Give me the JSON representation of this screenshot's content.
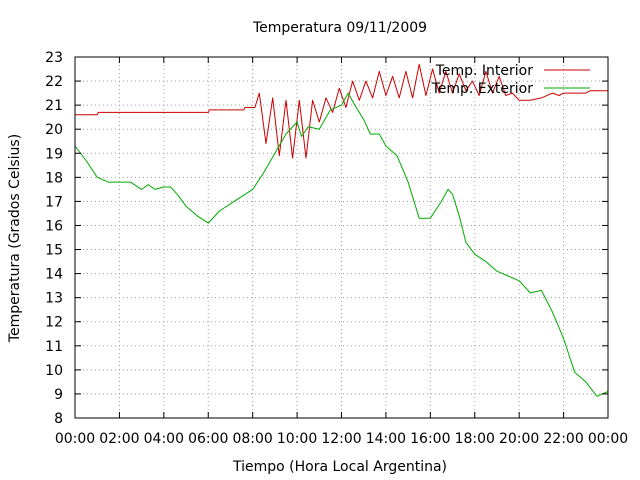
{
  "chart_data": {
    "type": "line",
    "title": "Temperatura 09/11/2009",
    "xlabel": "Tiempo (Hora Local Argentina)",
    "ylabel": "Temperatura (Grados Celsius)",
    "xlim": [
      0,
      24
    ],
    "ylim": [
      8,
      23
    ],
    "grid": true,
    "legend_position": "top-right",
    "x_ticks": [
      0,
      2,
      4,
      6,
      8,
      10,
      12,
      14,
      16,
      18,
      20,
      22,
      24
    ],
    "x_tick_labels": [
      "00:00",
      "02:00",
      "04:00",
      "06:00",
      "08:00",
      "10:00",
      "12:00",
      "14:00",
      "16:00",
      "18:00",
      "20:00",
      "22:00",
      "00:00"
    ],
    "y_ticks": [
      8,
      9,
      10,
      11,
      12,
      13,
      14,
      15,
      16,
      17,
      18,
      19,
      20,
      21,
      22,
      23
    ],
    "y_tick_labels": [
      "8",
      "9",
      "10",
      "11",
      "12",
      "13",
      "14",
      "15",
      "16",
      "17",
      "18",
      "19",
      "20",
      "21",
      "22",
      "23"
    ],
    "series": [
      {
        "name": "Temp. Interior",
        "color": "#cc0000",
        "x": [
          0,
          1,
          1.05,
          6,
          6.05,
          7.6,
          7.65,
          8.1,
          8.3,
          8.6,
          8.9,
          9.2,
          9.5,
          9.8,
          10.1,
          10.4,
          10.7,
          11.0,
          11.3,
          11.6,
          11.9,
          12.2,
          12.5,
          12.8,
          13.1,
          13.4,
          13.7,
          14.0,
          14.3,
          14.6,
          14.9,
          15.2,
          15.5,
          15.8,
          16.1,
          16.4,
          16.7,
          17.0,
          17.3,
          17.6,
          17.9,
          18.2,
          18.5,
          18.8,
          19.1,
          19.4,
          19.7,
          20.0,
          20.5,
          21.0,
          21.5,
          21.8,
          22.0,
          23.0,
          23.2,
          24.0
        ],
        "y": [
          20.6,
          20.6,
          20.7,
          20.7,
          20.8,
          20.8,
          20.9,
          20.9,
          21.5,
          19.4,
          21.3,
          18.9,
          21.2,
          18.8,
          21.2,
          18.8,
          21.2,
          20.3,
          21.3,
          20.7,
          21.7,
          20.9,
          22.0,
          21.2,
          22.0,
          21.3,
          22.4,
          21.4,
          22.2,
          21.3,
          22.4,
          21.3,
          22.7,
          21.4,
          22.5,
          21.5,
          22.4,
          21.5,
          22.3,
          21.6,
          22.0,
          21.4,
          22.4,
          21.5,
          22.2,
          21.4,
          21.5,
          21.2,
          21.2,
          21.3,
          21.5,
          21.4,
          21.5,
          21.5,
          21.6,
          21.6
        ]
      },
      {
        "name": "Temp. Exterior",
        "color": "#00aa00",
        "x": [
          0,
          0.5,
          1,
          1.5,
          2,
          2.5,
          3,
          3.3,
          3.6,
          4,
          4.3,
          4.6,
          5,
          5.5,
          6,
          6.5,
          7,
          7.5,
          8,
          8.5,
          9,
          9.5,
          10,
          10.2,
          10.5,
          11,
          11.5,
          12,
          12.3,
          12.6,
          13,
          13.3,
          13.7,
          14,
          14.5,
          15,
          15.5,
          16,
          16.5,
          16.8,
          17,
          17.3,
          17.6,
          18,
          18.5,
          19,
          19.5,
          20,
          20.5,
          21,
          21.5,
          22,
          22.5,
          23,
          23.5,
          24
        ],
        "y": [
          19.3,
          18.7,
          18.0,
          17.8,
          17.8,
          17.8,
          17.5,
          17.7,
          17.5,
          17.6,
          17.6,
          17.3,
          16.8,
          16.4,
          16.1,
          16.6,
          16.9,
          17.2,
          17.5,
          18.2,
          19.0,
          19.8,
          20.3,
          19.7,
          20.1,
          20.0,
          20.8,
          21.0,
          21.5,
          21.0,
          20.4,
          19.8,
          19.8,
          19.3,
          18.9,
          17.8,
          16.3,
          16.3,
          17.0,
          17.5,
          17.3,
          16.4,
          15.3,
          14.8,
          14.5,
          14.1,
          13.9,
          13.7,
          13.2,
          13.3,
          12.4,
          11.3,
          9.9,
          9.5,
          8.9,
          9.1
        ]
      }
    ]
  }
}
